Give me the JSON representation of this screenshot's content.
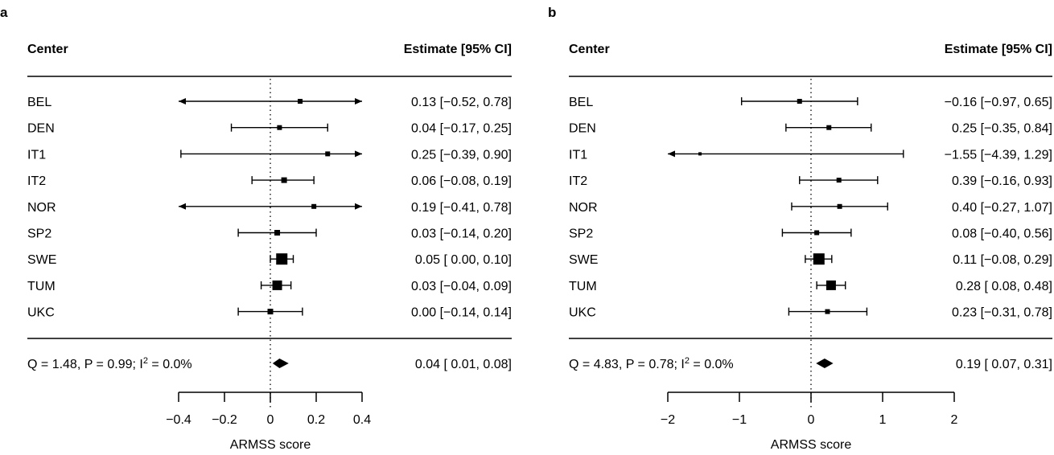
{
  "chart_data": [
    {
      "type": "forest",
      "panel_label": "a",
      "header_left": "Center",
      "header_right": "Estimate [95% CI]",
      "xlabel": "ARMSS score",
      "xlim": [
        -0.4,
        0.4
      ],
      "xticks": [
        -0.4,
        -0.2,
        0,
        0.2,
        0.4
      ],
      "xtick_labels": [
        "−0.4",
        "−0.2",
        "0",
        "0.2",
        "0.4"
      ],
      "reference_line": 0,
      "rows": [
        {
          "center": "BEL",
          "estimate": 0.13,
          "lower": -0.52,
          "upper": 0.78,
          "label": "0.13 [−0.52, 0.78]",
          "size": "small",
          "arrow_left": true,
          "arrow_right": true
        },
        {
          "center": "DEN",
          "estimate": 0.04,
          "lower": -0.17,
          "upper": 0.25,
          "label": "0.04 [−0.17, 0.25]",
          "size": "small",
          "arrow_left": false,
          "arrow_right": false
        },
        {
          "center": "IT1",
          "estimate": 0.25,
          "lower": -0.39,
          "upper": 0.9,
          "label": "0.25 [−0.39, 0.90]",
          "size": "small",
          "arrow_left": false,
          "arrow_right": true
        },
        {
          "center": "IT2",
          "estimate": 0.06,
          "lower": -0.08,
          "upper": 0.19,
          "label": "0.06 [−0.08, 0.19]",
          "size": "medium",
          "arrow_left": false,
          "arrow_right": false
        },
        {
          "center": "NOR",
          "estimate": 0.19,
          "lower": -0.41,
          "upper": 0.78,
          "label": "0.19 [−0.41, 0.78]",
          "size": "small",
          "arrow_left": true,
          "arrow_right": true
        },
        {
          "center": "SP2",
          "estimate": 0.03,
          "lower": -0.14,
          "upper": 0.2,
          "label": "0.03 [−0.14, 0.20]",
          "size": "medium",
          "arrow_left": false,
          "arrow_right": false
        },
        {
          "center": "SWE",
          "estimate": 0.05,
          "lower": 0.0,
          "upper": 0.1,
          "label": "0.05 [ 0.00, 0.10]",
          "size": "xlarge",
          "arrow_left": false,
          "arrow_right": false
        },
        {
          "center": "TUM",
          "estimate": 0.03,
          "lower": -0.04,
          "upper": 0.09,
          "label": "0.03 [−0.04, 0.09]",
          "size": "large",
          "arrow_left": false,
          "arrow_right": false
        },
        {
          "center": "UKC",
          "estimate": 0.0,
          "lower": -0.14,
          "upper": 0.14,
          "label": "0.00 [−0.14, 0.14]",
          "size": "medium",
          "arrow_left": false,
          "arrow_right": false
        }
      ],
      "summary": {
        "stat_q": "1.48",
        "stat_p": "0.99",
        "i2": "0.0%",
        "estimate": 0.04,
        "lower": 0.01,
        "upper": 0.08,
        "label": "0.04 [ 0.01, 0.08]"
      }
    },
    {
      "type": "forest",
      "panel_label": "b",
      "header_left": "Center",
      "header_right": "Estimate [95% CI]",
      "xlabel": "ARMSS score",
      "xlim": [
        -2,
        2
      ],
      "xticks": [
        -2,
        -1,
        0,
        1,
        2
      ],
      "xtick_labels": [
        "−2",
        "−1",
        "0",
        "1",
        "2"
      ],
      "reference_line": 0,
      "rows": [
        {
          "center": "BEL",
          "estimate": -0.16,
          "lower": -0.97,
          "upper": 0.65,
          "label": "−0.16 [−0.97, 0.65]",
          "size": "small",
          "arrow_left": false,
          "arrow_right": false
        },
        {
          "center": "DEN",
          "estimate": 0.25,
          "lower": -0.35,
          "upper": 0.84,
          "label": "0.25 [−0.35, 0.84]",
          "size": "small",
          "arrow_left": false,
          "arrow_right": false
        },
        {
          "center": "IT1",
          "estimate": -1.55,
          "lower": -4.39,
          "upper": 1.29,
          "label": "−1.55 [−4.39, 1.29]",
          "size": "tiny",
          "arrow_left": true,
          "arrow_right": false
        },
        {
          "center": "IT2",
          "estimate": 0.39,
          "lower": -0.16,
          "upper": 0.93,
          "label": "0.39 [−0.16, 0.93]",
          "size": "small",
          "arrow_left": false,
          "arrow_right": false
        },
        {
          "center": "NOR",
          "estimate": 0.4,
          "lower": -0.27,
          "upper": 1.07,
          "label": "0.40 [−0.27, 1.07]",
          "size": "small",
          "arrow_left": false,
          "arrow_right": false
        },
        {
          "center": "SP2",
          "estimate": 0.08,
          "lower": -0.4,
          "upper": 0.56,
          "label": "0.08 [−0.40, 0.56]",
          "size": "small",
          "arrow_left": false,
          "arrow_right": false
        },
        {
          "center": "SWE",
          "estimate": 0.11,
          "lower": -0.08,
          "upper": 0.29,
          "label": "0.11 [−0.08, 0.29]",
          "size": "xlarge",
          "arrow_left": false,
          "arrow_right": false
        },
        {
          "center": "TUM",
          "estimate": 0.28,
          "lower": 0.08,
          "upper": 0.48,
          "label": "0.28 [ 0.08, 0.48]",
          "size": "large",
          "arrow_left": false,
          "arrow_right": false
        },
        {
          "center": "UKC",
          "estimate": 0.23,
          "lower": -0.31,
          "upper": 0.78,
          "label": "0.23 [−0.31, 0.78]",
          "size": "small",
          "arrow_left": false,
          "arrow_right": false
        }
      ],
      "summary": {
        "stat_q": "4.83",
        "stat_p": "0.78",
        "i2": "0.0%",
        "estimate": 0.19,
        "lower": 0.07,
        "upper": 0.31,
        "label": "0.19 [ 0.07, 0.31]"
      }
    }
  ]
}
